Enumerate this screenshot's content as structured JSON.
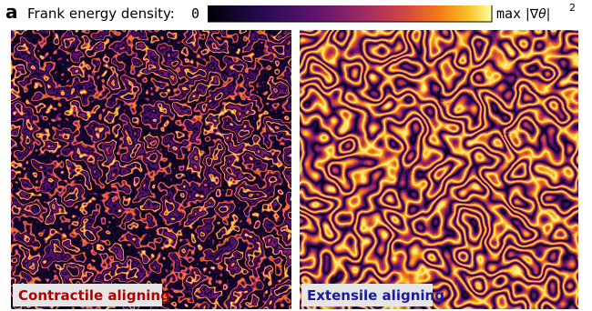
{
  "panel_label": "a",
  "colorbar": {
    "title": "Frank energy density:",
    "min_label": "0",
    "max_label": "max",
    "max_expr": "|∇θ|",
    "max_exponent": "2"
  },
  "panels": [
    {
      "label": "Contractile aligning"
    },
    {
      "label": "Extensile aligning"
    }
  ]
}
